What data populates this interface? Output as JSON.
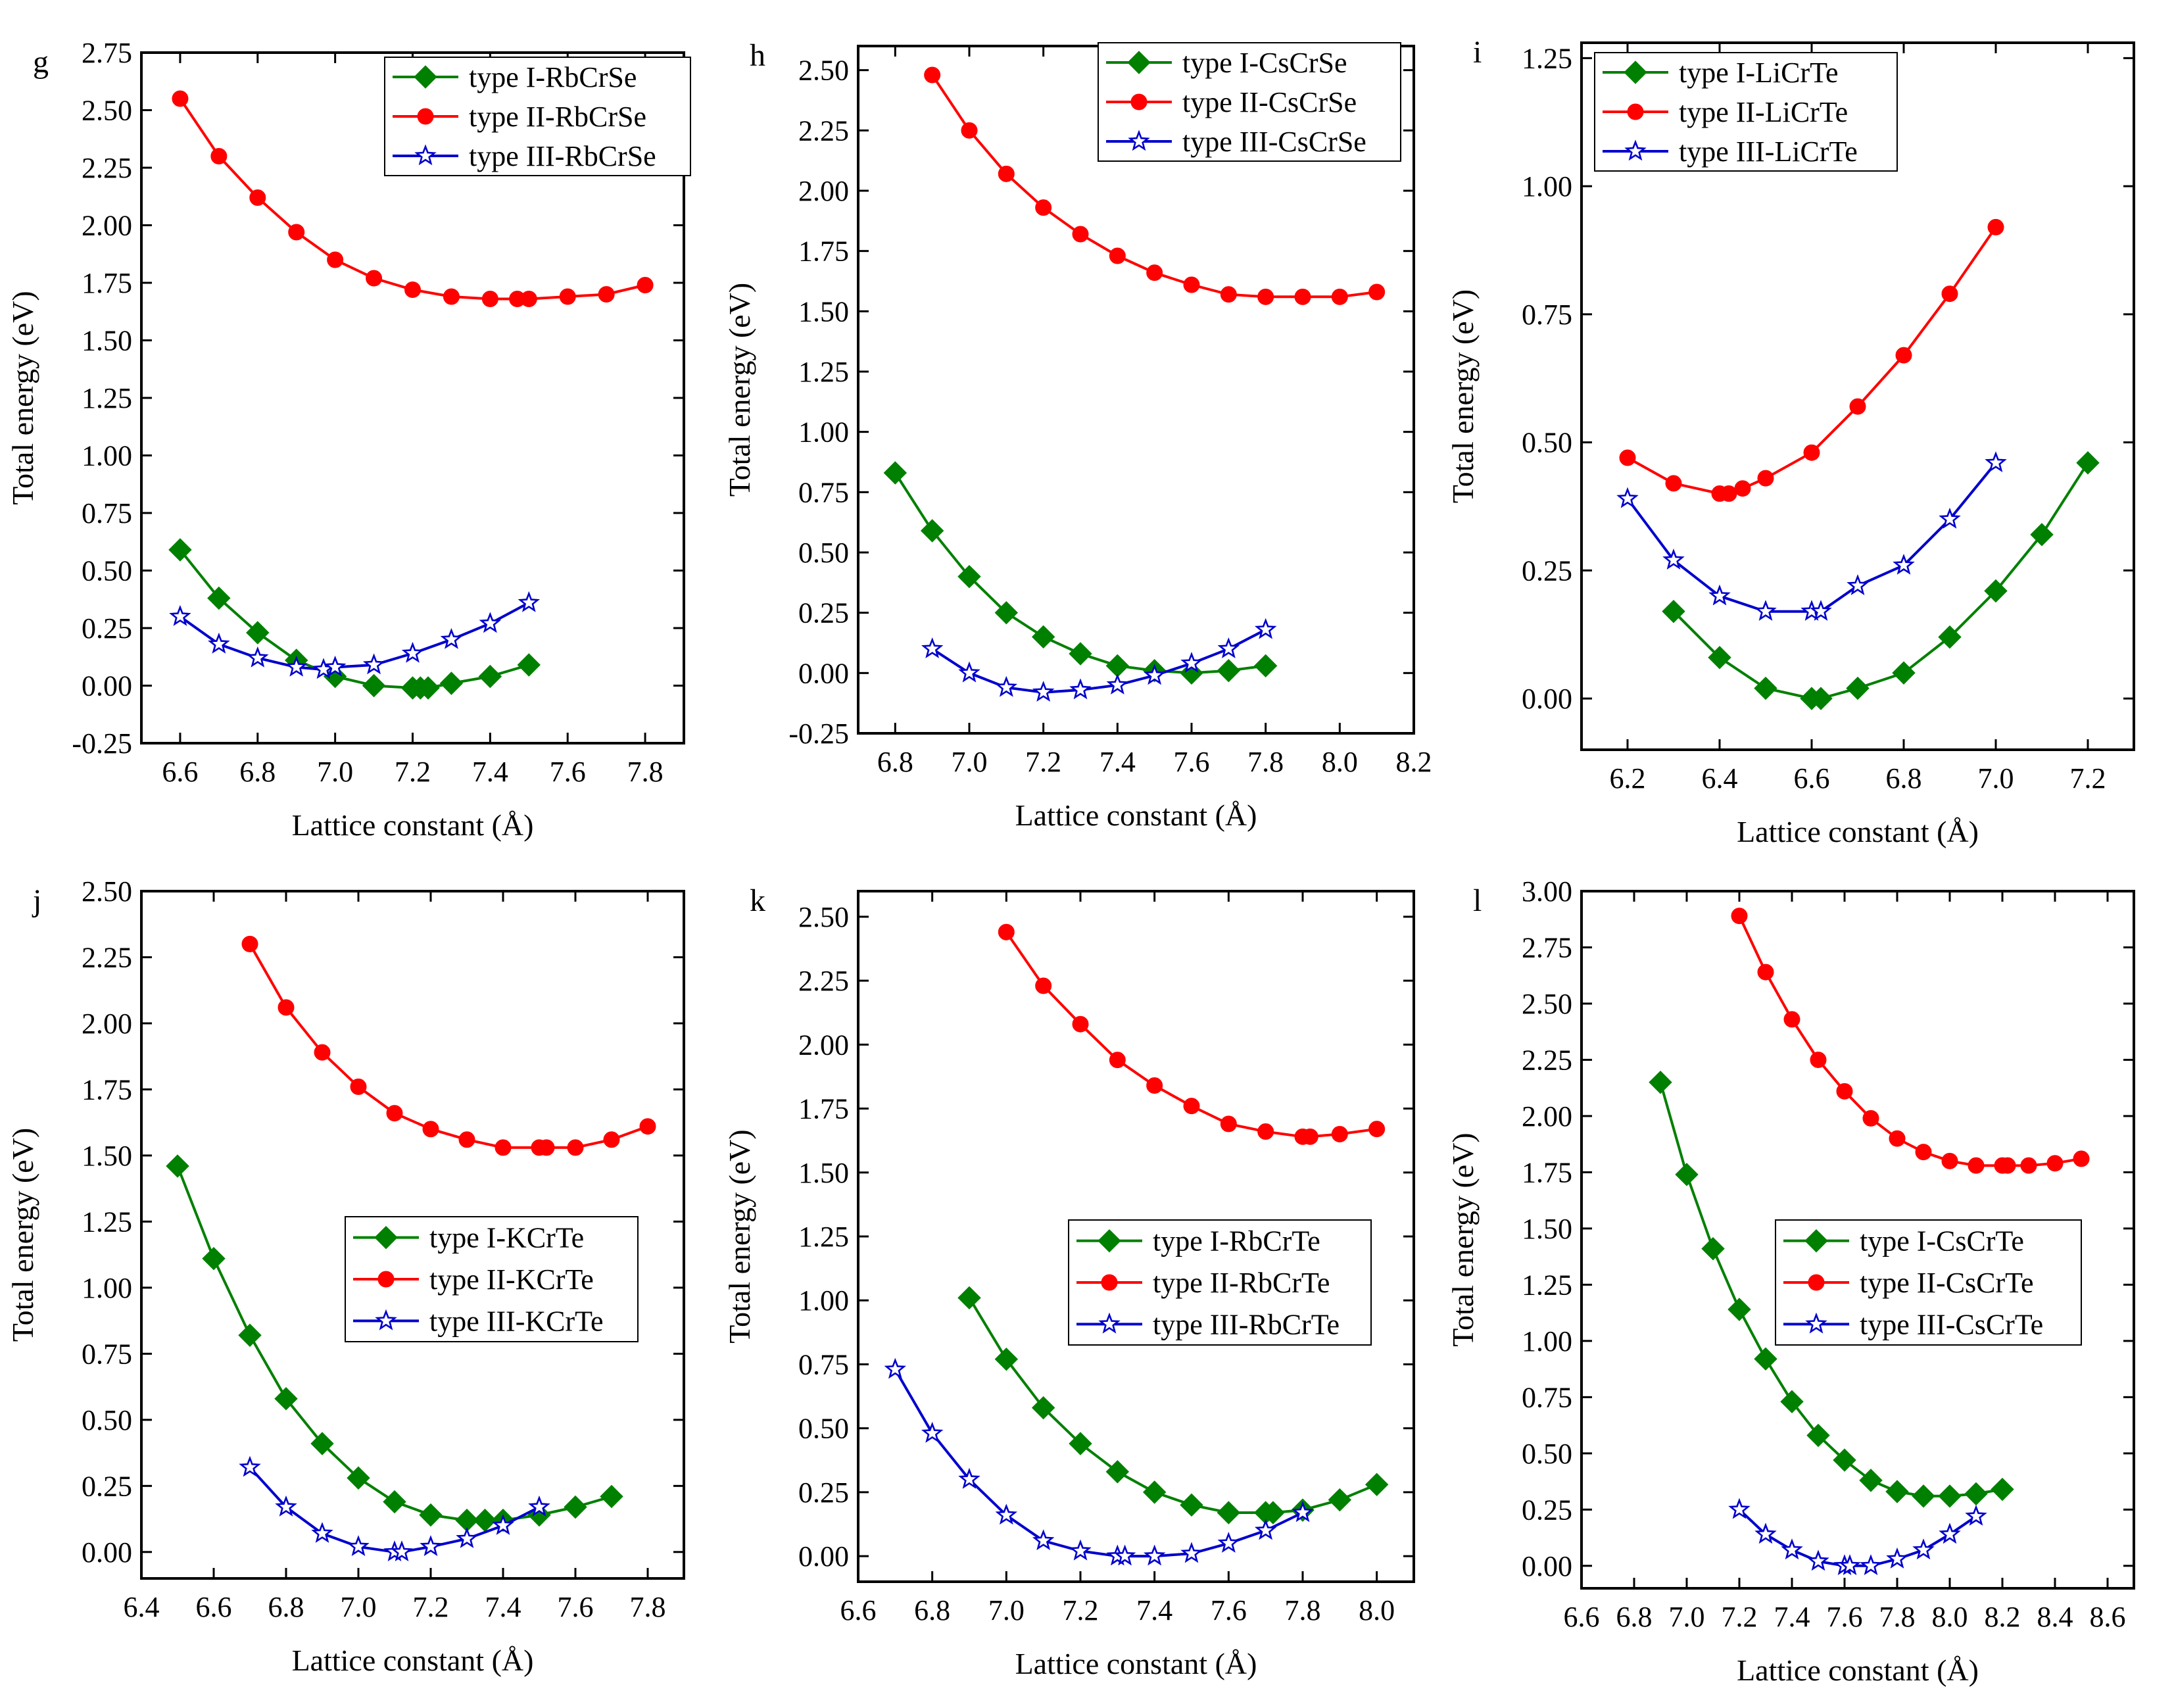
{
  "colors": {
    "type1": "#008000",
    "type2": "#ff0000",
    "type3": "#0000cd",
    "axis": "#000000"
  },
  "chart_data": [
    {
      "type": "line",
      "panel_label": "g",
      "xlabel": "Lattice constant (Å)",
      "ylabel": "Total energy (eV)",
      "xlim": [
        6.5,
        7.9
      ],
      "ylim": [
        -0.25,
        2.75
      ],
      "xticks": [
        6.6,
        6.8,
        7.0,
        7.2,
        7.4,
        7.6,
        7.8
      ],
      "xtick_labels": [
        "6.6",
        "6.8",
        "7.0",
        "7.2",
        "7.4",
        "7.6",
        "7.8"
      ],
      "yticks": [
        -0.25,
        0,
        0.25,
        0.5,
        0.75,
        1.0,
        1.25,
        1.5,
        1.75,
        2.0,
        2.25,
        2.5,
        2.75
      ],
      "ytick_labels": [
        "-0.25",
        "0.00",
        "0.25",
        "0.50",
        "0.75",
        "1.00",
        "1.25",
        "1.50",
        "1.75",
        "2.00",
        "2.25",
        "2.50",
        "2.75"
      ],
      "legend_position": "top-right",
      "series": [
        {
          "name": "type I-RbCrSe",
          "style": "type1",
          "x": [
            6.6,
            6.7,
            6.8,
            6.9,
            7.0,
            7.1,
            7.2,
            7.22,
            7.24,
            7.3,
            7.4,
            7.5
          ],
          "y": [
            0.59,
            0.38,
            0.23,
            0.11,
            0.04,
            0.0,
            -0.01,
            -0.01,
            -0.01,
            0.01,
            0.04,
            0.09
          ]
        },
        {
          "name": "type II-RbCrSe",
          "style": "type2",
          "x": [
            6.6,
            6.7,
            6.8,
            6.9,
            7.0,
            7.1,
            7.2,
            7.3,
            7.4,
            7.47,
            7.5,
            7.6,
            7.7,
            7.8
          ],
          "y": [
            2.55,
            2.3,
            2.12,
            1.97,
            1.85,
            1.77,
            1.72,
            1.69,
            1.68,
            1.68,
            1.68,
            1.69,
            1.7,
            1.74
          ]
        },
        {
          "name": "type III-RbCrSe",
          "style": "type3",
          "x": [
            6.6,
            6.7,
            6.8,
            6.9,
            6.97,
            7.0,
            7.1,
            7.2,
            7.3,
            7.4,
            7.5
          ],
          "y": [
            0.3,
            0.18,
            0.12,
            0.08,
            0.07,
            0.08,
            0.09,
            0.14,
            0.2,
            0.27,
            0.36
          ]
        }
      ]
    },
    {
      "type": "line",
      "panel_label": "h",
      "xlabel": "Lattice constant (Å)",
      "ylabel": "Total energy (eV)",
      "xlim": [
        6.7,
        8.2
      ],
      "ylim": [
        -0.25,
        2.6
      ],
      "xticks": [
        6.8,
        7.0,
        7.2,
        7.4,
        7.6,
        7.8,
        8.0,
        8.2
      ],
      "xtick_labels": [
        "6.8",
        "7.0",
        "7.2",
        "7.4",
        "7.6",
        "7.8",
        "8.0",
        "8.2"
      ],
      "yticks": [
        -0.25,
        0,
        0.25,
        0.5,
        0.75,
        1.0,
        1.25,
        1.5,
        1.75,
        2.0,
        2.25,
        2.5
      ],
      "ytick_labels": [
        "-0.25",
        "0.00",
        "0.25",
        "0.50",
        "0.75",
        "1.00",
        "1.25",
        "1.50",
        "1.75",
        "2.00",
        "2.25",
        "2.50"
      ],
      "legend_position": "top-right",
      "series": [
        {
          "name": "type I-CsCrSe",
          "style": "type1",
          "x": [
            6.8,
            6.9,
            7.0,
            7.1,
            7.2,
            7.3,
            7.4,
            7.5,
            7.6,
            7.7,
            7.8
          ],
          "y": [
            0.83,
            0.59,
            0.4,
            0.25,
            0.15,
            0.08,
            0.03,
            0.01,
            0.0,
            0.01,
            0.03
          ]
        },
        {
          "name": "type II-CsCrSe",
          "style": "type2",
          "x": [
            6.9,
            7.0,
            7.1,
            7.2,
            7.3,
            7.4,
            7.5,
            7.6,
            7.7,
            7.8,
            7.9,
            8.0,
            8.1
          ],
          "y": [
            2.48,
            2.25,
            2.07,
            1.93,
            1.82,
            1.73,
            1.66,
            1.61,
            1.57,
            1.56,
            1.56,
            1.56,
            1.58
          ]
        },
        {
          "name": "type III-CsCrSe",
          "style": "type3",
          "x": [
            6.9,
            7.0,
            7.1,
            7.2,
            7.3,
            7.4,
            7.5,
            7.6,
            7.7,
            7.8
          ],
          "y": [
            0.1,
            0.0,
            -0.06,
            -0.08,
            -0.07,
            -0.05,
            -0.01,
            0.04,
            0.1,
            0.18
          ]
        }
      ]
    },
    {
      "type": "line",
      "panel_label": "i",
      "xlabel": "Lattice constant (Å)",
      "ylabel": "Total energy (eV)",
      "xlim": [
        6.1,
        7.3
      ],
      "ylim": [
        -0.1,
        1.28
      ],
      "xticks": [
        6.2,
        6.4,
        6.6,
        6.8,
        7.0,
        7.2
      ],
      "xtick_labels": [
        "6.2",
        "6.4",
        "6.6",
        "6.8",
        "7.0",
        "7.2"
      ],
      "yticks": [
        0,
        0.25,
        0.5,
        0.75,
        1.0,
        1.25
      ],
      "ytick_labels": [
        "0.00",
        "0.25",
        "0.50",
        "0.75",
        "1.00",
        "1.25"
      ],
      "legend_position": "top-left",
      "series": [
        {
          "name": "type I-LiCrTe",
          "style": "type1",
          "x": [
            6.3,
            6.4,
            6.5,
            6.6,
            6.62,
            6.7,
            6.8,
            6.9,
            7.0,
            7.1,
            7.2
          ],
          "y": [
            0.17,
            0.08,
            0.02,
            0.0,
            0.0,
            0.02,
            0.05,
            0.12,
            0.21,
            0.32,
            0.46
          ]
        },
        {
          "name": "type II-LiCrTe",
          "style": "type2",
          "x": [
            6.2,
            6.3,
            6.4,
            6.42,
            6.45,
            6.5,
            6.6,
            6.7,
            6.8,
            6.9,
            7.0
          ],
          "y": [
            0.47,
            0.42,
            0.4,
            0.4,
            0.41,
            0.43,
            0.48,
            0.57,
            0.67,
            0.79,
            0.92
          ]
        },
        {
          "name": "type III-LiCrTe",
          "style": "type3",
          "x": [
            6.2,
            6.3,
            6.4,
            6.5,
            6.6,
            6.62,
            6.7,
            6.8,
            6.9,
            7.0
          ],
          "y": [
            0.39,
            0.27,
            0.2,
            0.17,
            0.17,
            0.17,
            0.22,
            0.26,
            0.35,
            0.46
          ]
        }
      ]
    },
    {
      "type": "line",
      "panel_label": "j",
      "xlabel": "Lattice constant (Å)",
      "ylabel": "Total energy (eV)",
      "xlim": [
        6.4,
        7.9
      ],
      "ylim": [
        -0.1,
        2.5
      ],
      "xticks": [
        6.4,
        6.6,
        6.8,
        7.0,
        7.2,
        7.4,
        7.6,
        7.8
      ],
      "xtick_labels": [
        "6.4",
        "6.6",
        "6.8",
        "7.0",
        "7.2",
        "7.4",
        "7.6",
        "7.8"
      ],
      "yticks": [
        0,
        0.25,
        0.5,
        0.75,
        1.0,
        1.25,
        1.5,
        1.75,
        2.0,
        2.25,
        2.5
      ],
      "ytick_labels": [
        "0.00",
        "0.25",
        "0.50",
        "0.75",
        "1.00",
        "1.25",
        "1.50",
        "1.75",
        "2.00",
        "2.25",
        "2.50"
      ],
      "legend_position": "center-right",
      "series": [
        {
          "name": "type I-KCrTe",
          "style": "type1",
          "x": [
            6.5,
            6.6,
            6.7,
            6.8,
            6.9,
            7.0,
            7.1,
            7.2,
            7.3,
            7.35,
            7.4,
            7.5,
            7.6,
            7.7
          ],
          "y": [
            1.46,
            1.11,
            0.82,
            0.58,
            0.41,
            0.28,
            0.19,
            0.14,
            0.12,
            0.12,
            0.12,
            0.14,
            0.17,
            0.21
          ]
        },
        {
          "name": "type II-KCrTe",
          "style": "type2",
          "x": [
            6.7,
            6.8,
            6.9,
            7.0,
            7.1,
            7.2,
            7.3,
            7.4,
            7.5,
            7.52,
            7.6,
            7.7,
            7.8
          ],
          "y": [
            2.3,
            2.06,
            1.89,
            1.76,
            1.66,
            1.6,
            1.56,
            1.53,
            1.53,
            1.53,
            1.53,
            1.56,
            1.61
          ]
        },
        {
          "name": "type III-KCrTe",
          "style": "type3",
          "x": [
            6.7,
            6.8,
            6.9,
            7.0,
            7.1,
            7.12,
            7.2,
            7.3,
            7.4,
            7.5
          ],
          "y": [
            0.32,
            0.17,
            0.07,
            0.02,
            0.0,
            0.0,
            0.02,
            0.05,
            0.1,
            0.17
          ]
        }
      ]
    },
    {
      "type": "line",
      "panel_label": "k",
      "xlabel": "Lattice constant (Å)",
      "ylabel": "Total energy (eV)",
      "xlim": [
        6.6,
        8.1
      ],
      "ylim": [
        -0.1,
        2.6
      ],
      "xticks": [
        6.6,
        6.8,
        7.0,
        7.2,
        7.4,
        7.6,
        7.8,
        8.0
      ],
      "xtick_labels": [
        "6.6",
        "6.8",
        "7.0",
        "7.2",
        "7.4",
        "7.6",
        "7.8",
        "8.0"
      ],
      "yticks": [
        0,
        0.25,
        0.5,
        0.75,
        1.0,
        1.25,
        1.5,
        1.75,
        2.0,
        2.25,
        2.5
      ],
      "ytick_labels": [
        "0.00",
        "0.25",
        "0.50",
        "0.75",
        "1.00",
        "1.25",
        "1.50",
        "1.75",
        "2.00",
        "2.25",
        "2.50"
      ],
      "legend_position": "center-right",
      "series": [
        {
          "name": "type I-RbCrTe",
          "style": "type1",
          "x": [
            6.9,
            7.0,
            7.1,
            7.2,
            7.3,
            7.4,
            7.5,
            7.6,
            7.7,
            7.72,
            7.8,
            7.9,
            8.0
          ],
          "y": [
            1.01,
            0.77,
            0.58,
            0.44,
            0.33,
            0.25,
            0.2,
            0.17,
            0.17,
            0.17,
            0.18,
            0.22,
            0.28
          ]
        },
        {
          "name": "type II-RbCrTe",
          "style": "type2",
          "x": [
            7.0,
            7.1,
            7.2,
            7.3,
            7.4,
            7.5,
            7.6,
            7.7,
            7.8,
            7.82,
            7.9,
            8.0
          ],
          "y": [
            2.44,
            2.23,
            2.08,
            1.94,
            1.84,
            1.76,
            1.69,
            1.66,
            1.64,
            1.64,
            1.65,
            1.67
          ]
        },
        {
          "name": "type III-RbCrTe",
          "style": "type3",
          "x": [
            6.7,
            6.8,
            6.9,
            7.0,
            7.1,
            7.2,
            7.3,
            7.32,
            7.4,
            7.5,
            7.6,
            7.7,
            7.8
          ],
          "y": [
            0.73,
            0.48,
            0.3,
            0.16,
            0.06,
            0.02,
            0.0,
            0.0,
            0.0,
            0.01,
            0.05,
            0.1,
            0.17
          ]
        }
      ]
    },
    {
      "type": "line",
      "panel_label": "l",
      "xlabel": "Lattice constant (Å)",
      "ylabel": "Total energy (eV)",
      "xlim": [
        6.6,
        8.7
      ],
      "ylim": [
        -0.1,
        3.0
      ],
      "xticks": [
        6.6,
        6.8,
        7.0,
        7.2,
        7.4,
        7.6,
        7.8,
        8.0,
        8.2,
        8.4,
        8.6
      ],
      "xtick_labels": [
        "6.6",
        "6.8",
        "7.0",
        "7.2",
        "7.4",
        "7.6",
        "7.8",
        "8.0",
        "8.2",
        "8.4",
        "8.6"
      ],
      "yticks": [
        0,
        0.25,
        0.5,
        0.75,
        1.0,
        1.25,
        1.5,
        1.75,
        2.0,
        2.25,
        2.5,
        2.75,
        3.0
      ],
      "ytick_labels": [
        "0.00",
        "0.25",
        "0.50",
        "0.75",
        "1.00",
        "1.25",
        "1.50",
        "1.75",
        "2.00",
        "2.25",
        "2.50",
        "2.75",
        "3.00"
      ],
      "legend_position": "center-right",
      "series": [
        {
          "name": "type I-CsCrTe",
          "style": "type1",
          "x": [
            6.9,
            7.0,
            7.1,
            7.2,
            7.3,
            7.4,
            7.5,
            7.6,
            7.7,
            7.8,
            7.9,
            8.0,
            8.1,
            8.2
          ],
          "y": [
            2.15,
            1.74,
            1.41,
            1.14,
            0.92,
            0.73,
            0.58,
            0.47,
            0.38,
            0.33,
            0.31,
            0.31,
            0.32,
            0.34
          ]
        },
        {
          "name": "type II-CsCrTe",
          "style": "type2",
          "x": [
            7.2,
            7.3,
            7.4,
            7.5,
            7.6,
            7.7,
            7.8,
            7.9,
            8.0,
            8.1,
            8.2,
            8.22,
            8.3,
            8.4,
            8.5
          ],
          "y": [
            2.89,
            2.64,
            2.43,
            2.25,
            2.11,
            1.99,
            1.9,
            1.84,
            1.8,
            1.78,
            1.78,
            1.78,
            1.78,
            1.79,
            1.81
          ]
        },
        {
          "name": "type III-CsCrTe",
          "style": "type3",
          "x": [
            7.2,
            7.3,
            7.4,
            7.5,
            7.6,
            7.62,
            7.7,
            7.8,
            7.9,
            8.0,
            8.1
          ],
          "y": [
            0.25,
            0.14,
            0.07,
            0.02,
            0.0,
            0.0,
            0.0,
            0.03,
            0.07,
            0.14,
            0.22
          ]
        }
      ]
    }
  ]
}
